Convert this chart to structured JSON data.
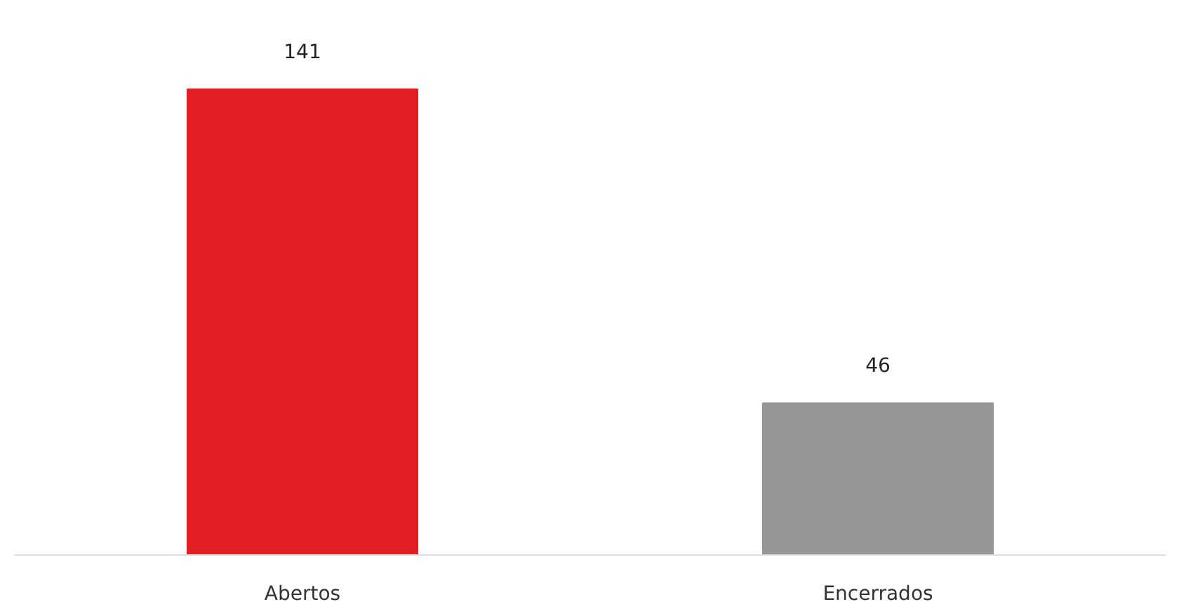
{
  "chart_data": {
    "type": "bar",
    "categories": [
      "Abertos",
      "Encerrados"
    ],
    "values": [
      141,
      46
    ],
    "colors": [
      "#e31e24",
      "#959595"
    ],
    "data_labels": true
  }
}
